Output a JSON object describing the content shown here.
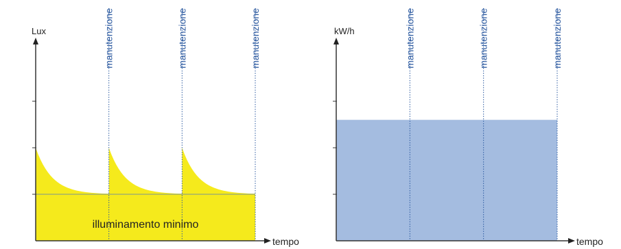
{
  "chart_data": [
    {
      "type": "area",
      "ylabel": "Lux",
      "xlabel": "tempo",
      "annotation": "illuminamento minimo",
      "event_label": "manutenzione",
      "x": [
        0,
        1,
        2,
        3
      ],
      "events_at": [
        1,
        2,
        3
      ],
      "minimum_level": 1,
      "cycle_start_level": 2,
      "ylim": [
        0,
        4.5
      ],
      "fill_color": "#f5ea1c",
      "minimum_line_color": "#a4b26a",
      "event_line_color": "#2c5aa0"
    },
    {
      "type": "area",
      "ylabel": "kW/h",
      "xlabel": "tempo",
      "event_label": "manutenzione",
      "x": [
        0,
        1,
        2,
        3
      ],
      "events_at": [
        1,
        2,
        3
      ],
      "values": [
        2.6,
        2.6,
        2.6,
        2.6
      ],
      "ylim": [
        0,
        4.5
      ],
      "fill_color": "#a4bce0",
      "event_line_color": "#2c5aa0"
    }
  ]
}
